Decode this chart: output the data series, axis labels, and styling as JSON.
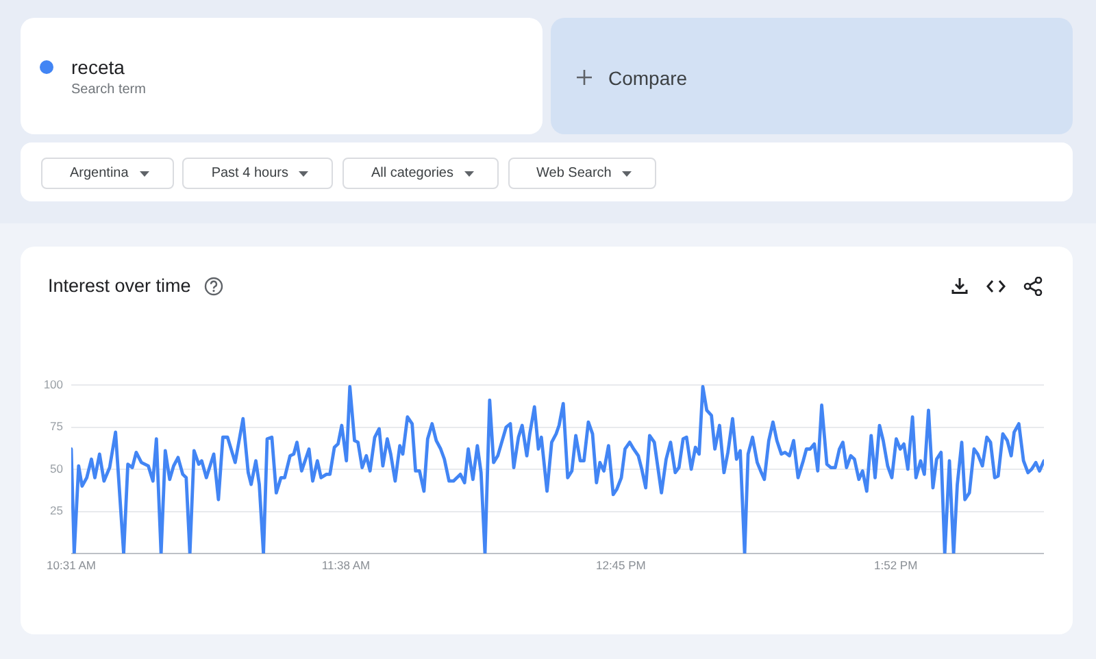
{
  "chart_data": {
    "type": "line",
    "title": "Interest over time",
    "legend": "top left",
    "legend_title": "Search term",
    "annotations": [
      "Compare",
      "Argentina",
      "Past 4 hours",
      "All categories",
      "Web Search"
    ],
    "x": [
      10.517,
      10.529,
      10.547,
      10.561,
      10.58,
      10.599,
      10.613,
      10.632,
      10.65,
      10.673,
      10.697,
      10.73,
      10.747,
      10.765,
      10.781,
      10.802,
      10.83,
      10.849,
      10.863,
      10.882,
      10.899,
      10.917,
      10.933,
      10.951,
      10.97,
      10.984,
      10.999,
      11.016,
      11.035,
      11.047,
      11.066,
      11.096,
      11.115,
      11.133,
      11.152,
      11.183,
      11.215,
      11.236,
      11.248,
      11.267,
      11.281,
      11.298,
      11.313,
      11.332,
      11.35,
      11.369,
      11.384,
      11.406,
      11.421,
      11.434,
      11.453,
      11.483,
      11.498,
      11.517,
      11.532,
      11.554,
      11.568,
      11.586,
      11.601,
      11.616,
      11.635,
      11.649,
      11.668,
      11.682,
      11.699,
      11.716,
      11.731,
      11.75,
      11.768,
      11.783,
      11.801,
      11.815,
      11.833,
      11.852,
      11.864,
      11.883,
      11.902,
      11.916,
      11.932,
      11.95,
      11.965,
      11.983,
      12.0,
      12.018,
      12.033,
      12.052,
      12.07,
      12.098,
      12.115,
      12.13,
      12.149,
      12.167,
      12.182,
      12.198,
      12.217,
      12.233,
      12.25,
      12.266,
      12.284,
      12.301,
      12.315,
      12.334,
      12.349,
      12.368,
      12.38,
      12.399,
      12.415,
      12.427,
      12.45,
      12.469,
      12.487,
      12.499,
      12.516,
      12.534,
      12.551,
      12.567,
      12.585,
      12.6,
      12.618,
      12.635,
      12.651,
      12.665,
      12.681,
      12.7,
      12.719,
      12.733,
      12.752,
      12.767,
      12.786,
      12.802,
      12.821,
      12.835,
      12.851,
      12.867,
      12.886,
      12.915,
      12.934,
      12.952,
      12.971,
      12.986,
      13.003,
      13.017,
      13.036,
      13.053,
      13.068,
      13.083,
      13.099,
      13.118,
      13.132,
      13.151,
      13.169,
      13.185,
      13.204,
      13.22,
      13.235,
      13.253,
      13.267,
      13.285,
      13.304,
      13.318,
      13.333,
      13.351,
      13.368,
      13.384,
      13.402,
      13.417,
      13.435,
      13.452,
      13.47,
      13.491,
      13.504,
      13.519,
      13.536,
      13.55,
      13.566,
      13.587,
      13.603,
      13.621,
      13.638,
      13.652,
      13.667,
      13.684,
      13.699,
      13.717,
      13.732,
      13.749,
      13.767,
      13.783,
      13.801,
      13.816,
      13.834,
      13.851,
      13.869,
      13.885,
      13.9,
      13.916,
      13.935,
      13.949,
      13.968,
      13.983,
      14.0,
      14.018,
      14.033,
      14.051,
      14.066,
      14.085,
      14.102,
      14.117,
      14.135,
      14.148,
      14.166,
      14.185,
      14.2,
      14.219,
      14.237,
      14.252,
      14.269,
      14.283,
      14.302,
      14.32,
      14.336,
      14.348,
      14.367,
      14.386,
      14.404,
      14.419,
      14.436,
      14.451,
      14.469
    ],
    "series": [
      {
        "name": "receta",
        "color": "#4285f4",
        "values": [
          62,
          0,
          52,
          40,
          45,
          56,
          45,
          59,
          43,
          51,
          72,
          0,
          53,
          51,
          60,
          54,
          52,
          43,
          68,
          0,
          61,
          44,
          52,
          57,
          47,
          45,
          0,
          61,
          53,
          55,
          45,
          59,
          32,
          69,
          69,
          54,
          80,
          48,
          41,
          55,
          41,
          0,
          68,
          69,
          36,
          45,
          45,
          58,
          59,
          66,
          49,
          62,
          43,
          55,
          45,
          47,
          47,
          63,
          65,
          76,
          55,
          99,
          67,
          66,
          51,
          58,
          49,
          69,
          74,
          52,
          68,
          59,
          43,
          64,
          59,
          81,
          77,
          49,
          49,
          37,
          68,
          77,
          67,
          62,
          56,
          43,
          43,
          47,
          42,
          62,
          44,
          64,
          48,
          0,
          91,
          54,
          58,
          66,
          75,
          77,
          51,
          69,
          76,
          58,
          71,
          87,
          62,
          69,
          37,
          66,
          71,
          76,
          89,
          45,
          49,
          70,
          55,
          55,
          78,
          71,
          42,
          54,
          49,
          64,
          35,
          38,
          45,
          62,
          66,
          62,
          58,
          50,
          39,
          70,
          66,
          36,
          56,
          66,
          48,
          51,
          68,
          69,
          50,
          63,
          59,
          99,
          85,
          82,
          62,
          76,
          48,
          60,
          80,
          56,
          61,
          0,
          59,
          69,
          54,
          49,
          44,
          67,
          78,
          67,
          59,
          60,
          58,
          67,
          45,
          55,
          62,
          62,
          65,
          49,
          88,
          53,
          51,
          51,
          62,
          66,
          51,
          58,
          56,
          44,
          49,
          37,
          70,
          45,
          76,
          67,
          52,
          45,
          68,
          62,
          65,
          50,
          81,
          45,
          55,
          47,
          85,
          39,
          56,
          60,
          0,
          55,
          0,
          41,
          66,
          32,
          36,
          62,
          59,
          52,
          69,
          66,
          45,
          46,
          71,
          67,
          58,
          72,
          77,
          55,
          48,
          50,
          54,
          49,
          55
        ]
      }
    ],
    "xlim": [
      10.517,
      14.469
    ],
    "xticks": [
      {
        "value": 10.517,
        "label": "10:31 AM"
      },
      {
        "value": 11.633,
        "label": "11:38 AM"
      },
      {
        "value": 12.75,
        "label": "12:45 PM"
      },
      {
        "value": 13.867,
        "label": "1:52 PM"
      }
    ],
    "ylim": [
      0,
      100
    ],
    "yticks": [
      {
        "value": 0,
        "label": null
      },
      25,
      50,
      75,
      100
    ],
    "grid": "y"
  }
}
